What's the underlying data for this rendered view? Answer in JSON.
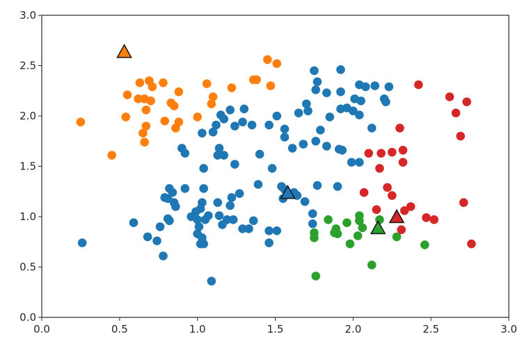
{
  "chart_data": {
    "type": "scatter",
    "title": "",
    "xlabel": "",
    "ylabel": "",
    "xlim": [
      0,
      3
    ],
    "ylim": [
      0,
      3
    ],
    "grid": false,
    "legend": "none",
    "x_ticks": [
      "0.0",
      "0.5",
      "1.0",
      "1.5",
      "2.0",
      "2.5",
      "3.0"
    ],
    "y_ticks": [
      "0.0",
      "0.5",
      "1.0",
      "1.5",
      "2.0",
      "2.5",
      "3.0"
    ],
    "series": [
      {
        "color": "#1f77b4",
        "marker": "circle",
        "points": [
          [
            1.75,
            2.45
          ],
          [
            1.92,
            2.46
          ],
          [
            1.77,
            2.34
          ],
          [
            1.76,
            2.26
          ],
          [
            1.83,
            2.23
          ],
          [
            1.92,
            2.24
          ],
          [
            2.04,
            2.31
          ],
          [
            2.08,
            2.29
          ],
          [
            2.14,
            2.3
          ],
          [
            2.23,
            2.29
          ],
          [
            2.01,
            2.17
          ],
          [
            2.05,
            2.15
          ],
          [
            2.2,
            2.17
          ],
          [
            2.21,
            2.14
          ],
          [
            1.92,
            2.07
          ],
          [
            1.96,
            2.08
          ],
          [
            2.0,
            2.05
          ],
          [
            2.04,
            2.01
          ],
          [
            1.7,
            2.12
          ],
          [
            1.71,
            2.05
          ],
          [
            1.65,
            2.03
          ],
          [
            1.85,
            1.99
          ],
          [
            1.79,
            1.86
          ],
          [
            2.12,
            1.88
          ],
          [
            1.56,
            1.87
          ],
          [
            1.51,
            2.0
          ],
          [
            1.46,
            1.91
          ],
          [
            1.29,
            1.94
          ],
          [
            1.3,
            2.07
          ],
          [
            1.21,
            2.06
          ],
          [
            1.15,
            2.01
          ],
          [
            1.17,
            1.97
          ],
          [
            1.12,
            1.91
          ],
          [
            1.03,
            1.83
          ],
          [
            1.1,
            1.84
          ],
          [
            1.35,
            1.91
          ],
          [
            1.24,
            1.9
          ],
          [
            1.56,
            1.79
          ],
          [
            1.61,
            1.68
          ],
          [
            1.68,
            1.72
          ],
          [
            1.76,
            1.75
          ],
          [
            1.83,
            1.7
          ],
          [
            1.91,
            1.67
          ],
          [
            1.93,
            1.66
          ],
          [
            1.99,
            1.54
          ],
          [
            2.04,
            1.54
          ],
          [
            0.9,
            1.68
          ],
          [
            0.92,
            1.63
          ],
          [
            1.04,
            1.48
          ],
          [
            1.14,
            1.68
          ],
          [
            1.13,
            1.61
          ],
          [
            1.17,
            1.61
          ],
          [
            1.24,
            1.52
          ],
          [
            1.4,
            1.62
          ],
          [
            1.48,
            1.48
          ],
          [
            0.26,
            0.74
          ],
          [
            0.59,
            0.94
          ],
          [
            0.68,
            0.8
          ],
          [
            0.74,
            0.76
          ],
          [
            0.76,
            0.9
          ],
          [
            0.78,
            0.61
          ],
          [
            0.79,
            1.19
          ],
          [
            0.82,
            1.28
          ],
          [
            0.81,
            1.18
          ],
          [
            0.85,
            1.14
          ],
          [
            0.84,
            1.24
          ],
          [
            0.86,
            1.1
          ],
          [
            0.81,
            0.98
          ],
          [
            0.82,
            0.96
          ],
          [
            0.92,
            1.28
          ],
          [
            1.04,
            1.28
          ],
          [
            1.03,
            1.14
          ],
          [
            1.02,
            1.08
          ],
          [
            0.99,
            1.05
          ],
          [
            0.96,
            1.0
          ],
          [
            1.0,
            0.97
          ],
          [
            1.01,
            0.9
          ],
          [
            1.0,
            0.83
          ],
          [
            1.03,
            0.79
          ],
          [
            1.04,
            0.73
          ],
          [
            1.02,
            0.73
          ],
          [
            1.09,
            0.36
          ],
          [
            1.05,
            0.97
          ],
          [
            1.07,
            1.01
          ],
          [
            1.13,
            1.14
          ],
          [
            1.14,
            1.01
          ],
          [
            1.16,
            0.92
          ],
          [
            1.19,
            0.97
          ],
          [
            1.22,
            1.19
          ],
          [
            1.21,
            1.11
          ],
          [
            1.23,
            0.97
          ],
          [
            1.27,
            1.23
          ],
          [
            1.29,
            0.88
          ],
          [
            1.33,
            0.88
          ],
          [
            1.39,
            1.32
          ],
          [
            1.36,
            0.96
          ],
          [
            1.46,
            0.86
          ],
          [
            1.51,
            0.86
          ],
          [
            1.46,
            0.74
          ],
          [
            1.54,
            1.3
          ],
          [
            1.55,
            1.18
          ],
          [
            1.64,
            1.21
          ],
          [
            1.69,
            1.15
          ],
          [
            1.74,
            1.03
          ],
          [
            1.74,
            0.93
          ],
          [
            1.77,
            1.31
          ],
          [
            1.9,
            1.3
          ],
          [
            1.62,
            1.24
          ],
          [
            1.56,
            1.27
          ]
        ]
      },
      {
        "color": "#ff7f0e",
        "marker": "circle",
        "points": [
          [
            0.25,
            1.94
          ],
          [
            0.45,
            1.61
          ],
          [
            0.55,
            2.21
          ],
          [
            0.54,
            1.99
          ],
          [
            0.62,
            2.17
          ],
          [
            0.63,
            2.33
          ],
          [
            0.66,
            2.17
          ],
          [
            0.69,
            2.35
          ],
          [
            0.71,
            2.29
          ],
          [
            0.67,
            2.06
          ],
          [
            0.65,
            1.83
          ],
          [
            0.67,
            1.9
          ],
          [
            0.66,
            1.74
          ],
          [
            0.7,
            2.15
          ],
          [
            0.78,
            2.33
          ],
          [
            0.79,
            1.95
          ],
          [
            0.83,
            2.13
          ],
          [
            0.85,
            2.1
          ],
          [
            0.88,
            2.24
          ],
          [
            0.88,
            1.94
          ],
          [
            0.86,
            1.88
          ],
          [
            1.0,
            1.99
          ],
          [
            1.06,
            2.32
          ],
          [
            1.1,
            2.19
          ],
          [
            1.09,
            2.12
          ],
          [
            1.22,
            2.28
          ],
          [
            1.36,
            2.36
          ],
          [
            1.38,
            2.36
          ],
          [
            1.45,
            2.56
          ],
          [
            1.51,
            2.52
          ],
          [
            1.47,
            2.3
          ]
        ]
      },
      {
        "color": "#2ca02c",
        "marker": "circle",
        "points": [
          [
            1.84,
            0.97
          ],
          [
            1.96,
            0.94
          ],
          [
            2.04,
            1.01
          ],
          [
            2.04,
            0.96
          ],
          [
            2.06,
            0.89
          ],
          [
            1.89,
            0.88
          ],
          [
            1.9,
            0.83
          ],
          [
            1.88,
            0.84
          ],
          [
            1.75,
            0.84
          ],
          [
            1.75,
            0.79
          ],
          [
            2.03,
            0.81
          ],
          [
            1.98,
            0.73
          ],
          [
            2.17,
            0.97
          ],
          [
            2.28,
            0.8
          ],
          [
            2.46,
            0.72
          ],
          [
            2.12,
            0.52
          ],
          [
            1.76,
            0.41
          ]
        ]
      },
      {
        "color": "#d62728",
        "marker": "circle",
        "points": [
          [
            2.42,
            2.31
          ],
          [
            2.62,
            2.19
          ],
          [
            2.66,
            2.03
          ],
          [
            2.73,
            2.14
          ],
          [
            2.3,
            1.88
          ],
          [
            2.69,
            1.8
          ],
          [
            2.1,
            1.63
          ],
          [
            2.18,
            1.63
          ],
          [
            2.25,
            1.64
          ],
          [
            2.32,
            1.66
          ],
          [
            2.32,
            1.54
          ],
          [
            2.17,
            1.48
          ],
          [
            2.07,
            1.24
          ],
          [
            2.22,
            1.29
          ],
          [
            2.25,
            1.21
          ],
          [
            2.15,
            1.07
          ],
          [
            2.33,
            1.06
          ],
          [
            2.37,
            1.1
          ],
          [
            2.47,
            0.99
          ],
          [
            2.52,
            0.97
          ],
          [
            2.31,
            0.87
          ],
          [
            2.71,
            1.14
          ],
          [
            2.76,
            0.73
          ]
        ]
      }
    ],
    "centroids": [
      {
        "color": "#1f77b4",
        "marker": "triangle",
        "x": 1.58,
        "y": 1.23
      },
      {
        "color": "#ff7f0e",
        "marker": "triangle",
        "x": 0.53,
        "y": 2.63
      },
      {
        "color": "#2ca02c",
        "marker": "triangle",
        "x": 2.16,
        "y": 0.88
      },
      {
        "color": "#d62728",
        "marker": "triangle",
        "x": 2.28,
        "y": 0.99
      }
    ]
  }
}
